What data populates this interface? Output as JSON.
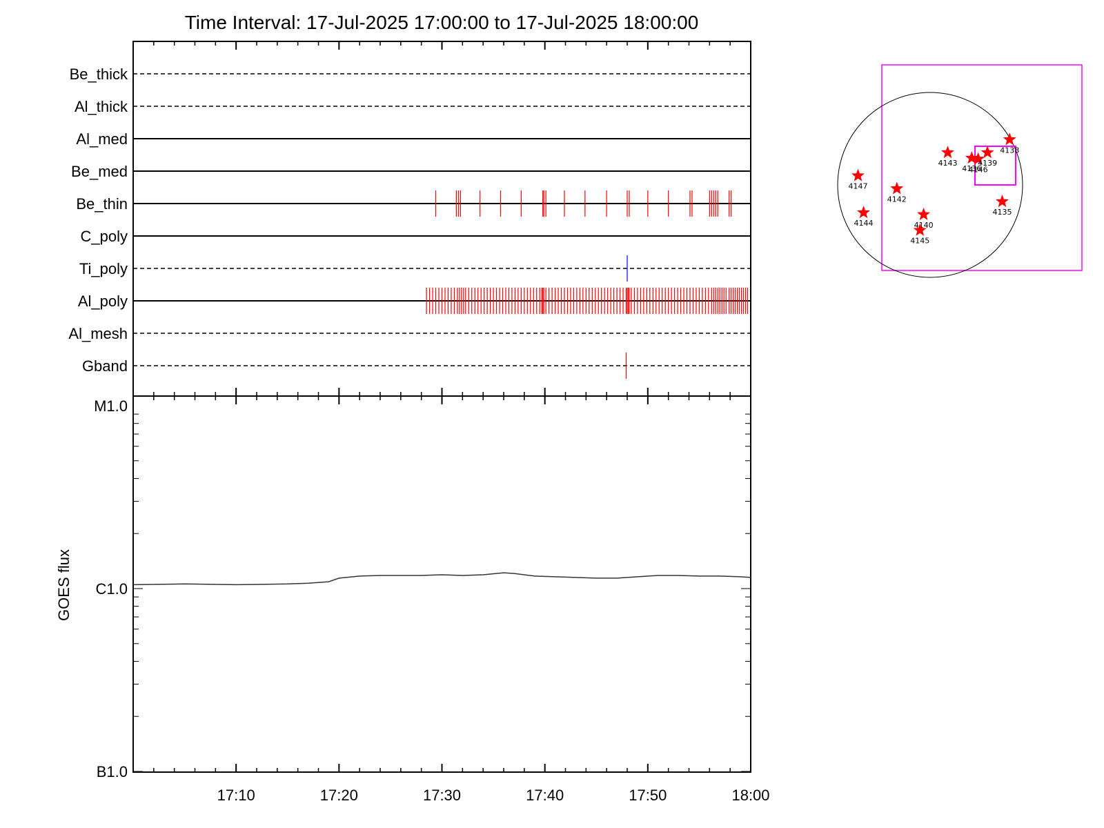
{
  "title": "Time Interval: 17-Jul-2025 17:00:00 to 17-Jul-2025 18:00:00",
  "chart_data": [
    {
      "type": "timeline",
      "time_range": [
        "17:00",
        "18:00"
      ],
      "channels": [
        {
          "name": "Be_thick",
          "style": "dashed",
          "events": [],
          "color": "#ff0000"
        },
        {
          "name": "Al_thick",
          "style": "dashed",
          "events": [],
          "color": "#ff0000"
        },
        {
          "name": "Al_med",
          "style": "solid",
          "events": [],
          "color": "#ff0000"
        },
        {
          "name": "Be_med",
          "style": "solid",
          "events": [],
          "color": "#ff0000"
        },
        {
          "name": "Be_thin",
          "style": "solid",
          "color": "#ff0000",
          "events": [
            29.4,
            31.4,
            31.6,
            31.8,
            33.7,
            35.7,
            37.7,
            39.8,
            39.9,
            40.1,
            41.9,
            43.9,
            46.0,
            48.0,
            48.2,
            50.0,
            52.0,
            54.1,
            54.3,
            56.0,
            56.2,
            56.4,
            56.6,
            56.8,
            57.9,
            58.1
          ]
        },
        {
          "name": "C_poly",
          "style": "solid",
          "events": [],
          "color": "#ff0000"
        },
        {
          "name": "Ti_poly",
          "style": "dashed",
          "events": [
            48.0
          ],
          "color": "#0000ff"
        },
        {
          "name": "Al_poly",
          "style": "solid",
          "color": "#ff0000",
          "events": [
            28.5,
            28.8,
            29.1,
            29.4,
            29.7,
            30.0,
            30.3,
            30.6,
            30.9,
            31.2,
            31.5,
            31.7,
            31.9,
            32.1,
            32.3,
            32.6,
            32.9,
            33.2,
            33.5,
            33.8,
            34.1,
            34.4,
            34.7,
            35.0,
            35.3,
            35.6,
            35.9,
            36.2,
            36.5,
            36.8,
            37.1,
            37.4,
            37.7,
            38.0,
            38.3,
            38.6,
            38.9,
            39.2,
            39.5,
            39.7,
            39.8,
            39.9,
            40.1,
            40.4,
            40.7,
            41.0,
            41.3,
            41.6,
            41.9,
            42.2,
            42.5,
            42.8,
            43.1,
            43.4,
            43.7,
            44.0,
            44.3,
            44.6,
            44.9,
            45.2,
            45.5,
            45.8,
            46.1,
            46.4,
            46.7,
            47.0,
            47.3,
            47.6,
            47.9,
            48.0,
            48.1,
            48.2,
            48.4,
            48.7,
            49.0,
            49.3,
            49.6,
            49.9,
            50.2,
            50.5,
            50.8,
            51.1,
            51.4,
            51.7,
            52.0,
            52.3,
            52.6,
            52.9,
            53.2,
            53.5,
            53.8,
            54.1,
            54.4,
            54.7,
            55.0,
            55.3,
            55.6,
            55.9,
            56.2,
            56.4,
            56.6,
            56.8,
            57.0,
            57.2,
            57.4,
            57.6,
            57.9,
            58.1,
            58.3,
            58.5,
            58.7,
            58.9,
            59.1,
            59.3,
            59.5,
            59.7
          ]
        },
        {
          "name": "Al_mesh",
          "style": "dashed",
          "events": [],
          "color": "#ff0000"
        },
        {
          "name": "Gband",
          "style": "dashed",
          "events": [
            47.9
          ],
          "color": "#ff0000"
        }
      ]
    },
    {
      "type": "line",
      "ylabel": "GOES flux",
      "yscale": "log",
      "yticks": [
        {
          "label": "M1.0",
          "value": 1e-05
        },
        {
          "label": "C1.0",
          "value": 1e-06
        },
        {
          "label": "B1.0",
          "value": 1e-07
        }
      ],
      "xticks": [
        "17:10",
        "17:20",
        "17:30",
        "17:40",
        "17:50",
        "18:00"
      ],
      "xrange_minutes": [
        0,
        60
      ],
      "ylim": [
        1e-07,
        1e-05
      ],
      "series": [
        {
          "color": "#333333",
          "x": [
            0,
            5,
            10,
            15,
            17,
            19,
            20,
            22,
            24,
            26,
            28,
            30,
            32,
            34,
            36,
            37,
            39,
            41,
            43,
            45,
            47,
            49,
            51,
            53,
            55,
            57,
            59,
            60
          ],
          "y": [
            1.05e-06,
            1.06e-06,
            1.05e-06,
            1.06e-06,
            1.07e-06,
            1.09e-06,
            1.14e-06,
            1.17e-06,
            1.18e-06,
            1.18e-06,
            1.18e-06,
            1.19e-06,
            1.18e-06,
            1.19e-06,
            1.22e-06,
            1.21e-06,
            1.17e-06,
            1.16e-06,
            1.15e-06,
            1.14e-06,
            1.14e-06,
            1.16e-06,
            1.18e-06,
            1.18e-06,
            1.17e-06,
            1.17e-06,
            1.16e-06,
            1.15e-06
          ]
        }
      ]
    },
    {
      "type": "scatter",
      "description_free": true,
      "active_regions": [
        {
          "label": "4147",
          "x": -0.78,
          "y": 0.1
        },
        {
          "label": "4142",
          "x": -0.36,
          "y": -0.04
        },
        {
          "label": "4144",
          "x": -0.72,
          "y": -0.3
        },
        {
          "label": "4140",
          "x": -0.07,
          "y": -0.32
        },
        {
          "label": "4145",
          "x": -0.11,
          "y": -0.49
        },
        {
          "label": "4143",
          "x": 0.19,
          "y": 0.35
        },
        {
          "label": "4136",
          "x": 0.45,
          "y": 0.29
        },
        {
          "label": "4146",
          "x": 0.52,
          "y": 0.28
        },
        {
          "label": "4139",
          "x": 0.62,
          "y": 0.35
        },
        {
          "label": "4138",
          "x": 0.86,
          "y": 0.49
        },
        {
          "label": "4135",
          "x": 0.78,
          "y": -0.18
        }
      ],
      "box_color": "#ff00ff",
      "star_color": "#ff0000"
    }
  ]
}
